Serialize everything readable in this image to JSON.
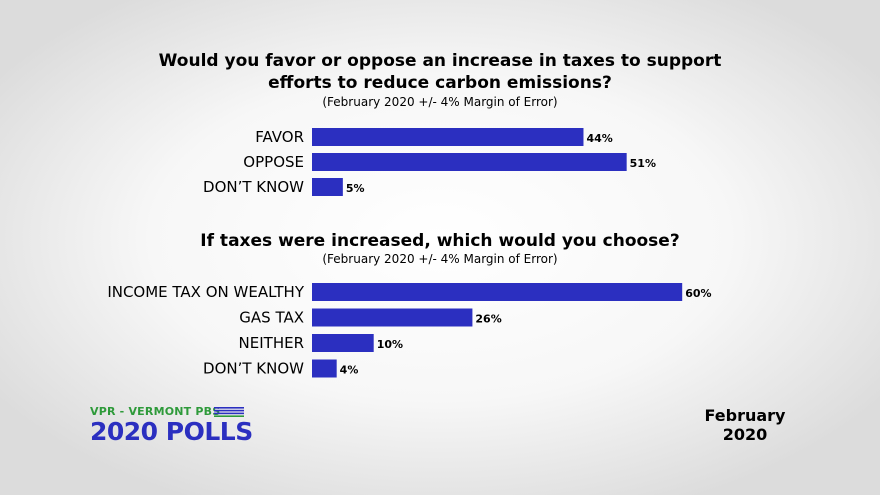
{
  "chart_data": [
    {
      "type": "bar",
      "orientation": "horizontal",
      "title_lines": [
        "Would you favor or oppose an increase in taxes to support",
        "efforts to reduce carbon emissions?"
      ],
      "subtitle": "(February 2020 +/- 4% Margin of Error)",
      "categories": [
        "FAVOR",
        "OPPOSE",
        "DON’T KNOW"
      ],
      "values": [
        44,
        51,
        5
      ],
      "value_labels": [
        "44%",
        "51%",
        "5%"
      ],
      "xlim": [
        0,
        100
      ],
      "bar_color": "#2b2fc0",
      "grid": false,
      "legend": "none"
    },
    {
      "type": "bar",
      "orientation": "horizontal",
      "title_lines": [
        "If taxes were increased, which would you choose?"
      ],
      "subtitle": "(February 2020 +/- 4% Margin of Error)",
      "categories": [
        "INCOME TAX ON WEALTHY",
        "GAS TAX",
        "NEITHER",
        "DON’T KNOW"
      ],
      "values": [
        60,
        26,
        10,
        4
      ],
      "value_labels": [
        "60%",
        "26%",
        "10%",
        "4%"
      ],
      "xlim": [
        0,
        100
      ],
      "bar_color": "#2b2fc0",
      "grid": false,
      "legend": "none"
    }
  ],
  "branding": {
    "top_line": "VPR - VERMONT PBS",
    "main": "2020 POLLS",
    "top_color": "#2e9a3a",
    "main_color": "#2b2fc0"
  },
  "date": {
    "line1": "February",
    "line2": "2020"
  }
}
